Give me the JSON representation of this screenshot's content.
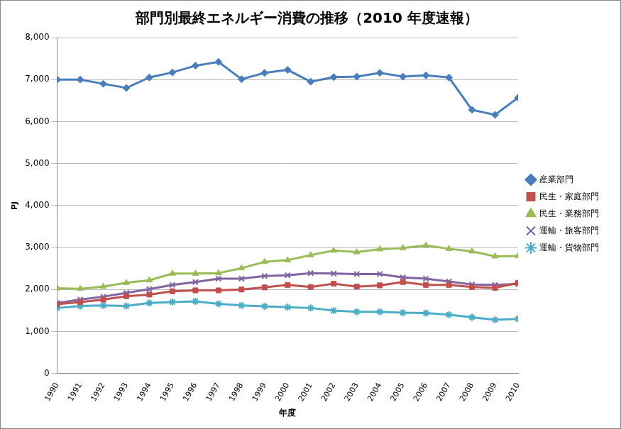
{
  "chart_data": {
    "type": "line",
    "title": "部門別最終エネルギー消費の推移（2010 年度速報）",
    "x_label": "年度",
    "y_label": "PJ",
    "categories": [
      "1990",
      "1991",
      "1992",
      "1993",
      "1994",
      "1995",
      "1996",
      "1997",
      "1998",
      "1999",
      "2000",
      "2001",
      "2002",
      "2003",
      "2004",
      "2005",
      "2006",
      "2007",
      "2008",
      "2009",
      "2010"
    ],
    "series": [
      {
        "name": "産業部門",
        "color": "#4a7ebb",
        "marker": "diamond",
        "values": [
          7000,
          7000,
          6900,
          6800,
          7050,
          7170,
          7330,
          7420,
          7010,
          7160,
          7230,
          6950,
          7060,
          7070,
          7160,
          7070,
          7100,
          7050,
          6280,
          6160,
          6570
        ]
      },
      {
        "name": "民生・家庭部門",
        "color": "#c0504d",
        "marker": "square",
        "values": [
          1650,
          1700,
          1760,
          1840,
          1880,
          1960,
          1980,
          1980,
          2000,
          2050,
          2110,
          2060,
          2140,
          2070,
          2100,
          2180,
          2110,
          2110,
          2060,
          2040,
          2160
        ]
      },
      {
        "name": "民生・業務部門",
        "color": "#9bbb59",
        "marker": "triangle",
        "values": [
          2030,
          2020,
          2070,
          2160,
          2220,
          2380,
          2380,
          2390,
          2510,
          2660,
          2700,
          2820,
          2930,
          2890,
          2960,
          2990,
          3050,
          2970,
          2910,
          2790,
          2800
        ]
      },
      {
        "name": "運輸・旅客部門",
        "color": "#8064a2",
        "marker": "x",
        "values": [
          1680,
          1760,
          1830,
          1920,
          2010,
          2110,
          2180,
          2260,
          2260,
          2320,
          2340,
          2390,
          2380,
          2370,
          2370,
          2290,
          2260,
          2190,
          2120,
          2110,
          2130
        ]
      },
      {
        "name": "運輸・貨物部門",
        "color": "#4bacc6",
        "marker": "star",
        "values": [
          1560,
          1610,
          1620,
          1610,
          1680,
          1700,
          1720,
          1660,
          1620,
          1600,
          1580,
          1560,
          1500,
          1470,
          1470,
          1450,
          1440,
          1400,
          1340,
          1280,
          1300
        ]
      }
    ],
    "ylim": [
      0,
      8000
    ],
    "yticks": [
      0,
      {
        "value": 1000,
        "label": "1,000"
      },
      {
        "value": 2000,
        "label": "2,000"
      },
      {
        "value": 3000,
        "label": "3,000"
      },
      {
        "value": 4000,
        "label": "4,000"
      },
      {
        "value": 5000,
        "label": "5,000"
      },
      {
        "value": 6000,
        "label": "6,000"
      },
      {
        "value": 7000,
        "label": "7,000"
      },
      {
        "value": 8000,
        "label": "8,000"
      }
    ],
    "grid": "y",
    "legend": "right"
  }
}
